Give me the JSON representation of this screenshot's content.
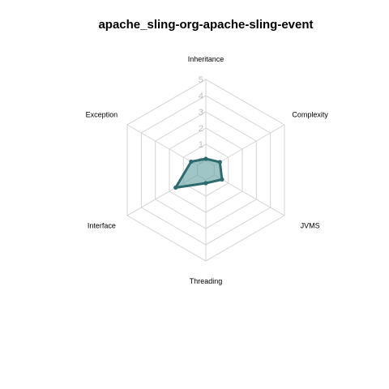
{
  "chart_data": {
    "type": "radar",
    "title": "apache_sling-org-apache-sling-event",
    "axes": [
      "Inheritance",
      "Complexity",
      "JVMS",
      "Threading",
      "Interface",
      "Exception"
    ],
    "ticks": [
      "0",
      "1",
      "2",
      "3",
      "4",
      "5"
    ],
    "range": [
      0,
      5
    ],
    "grid": true,
    "series": [
      {
        "values": [
          0.1,
          0.4,
          0.55,
          0.2,
          1.55,
          0.45
        ]
      }
    ],
    "colors": {
      "fill": "#5f9ea0",
      "stroke": "#2e6b6e",
      "grid": "#d4d4d4",
      "tick": "#bdbdbd"
    }
  }
}
